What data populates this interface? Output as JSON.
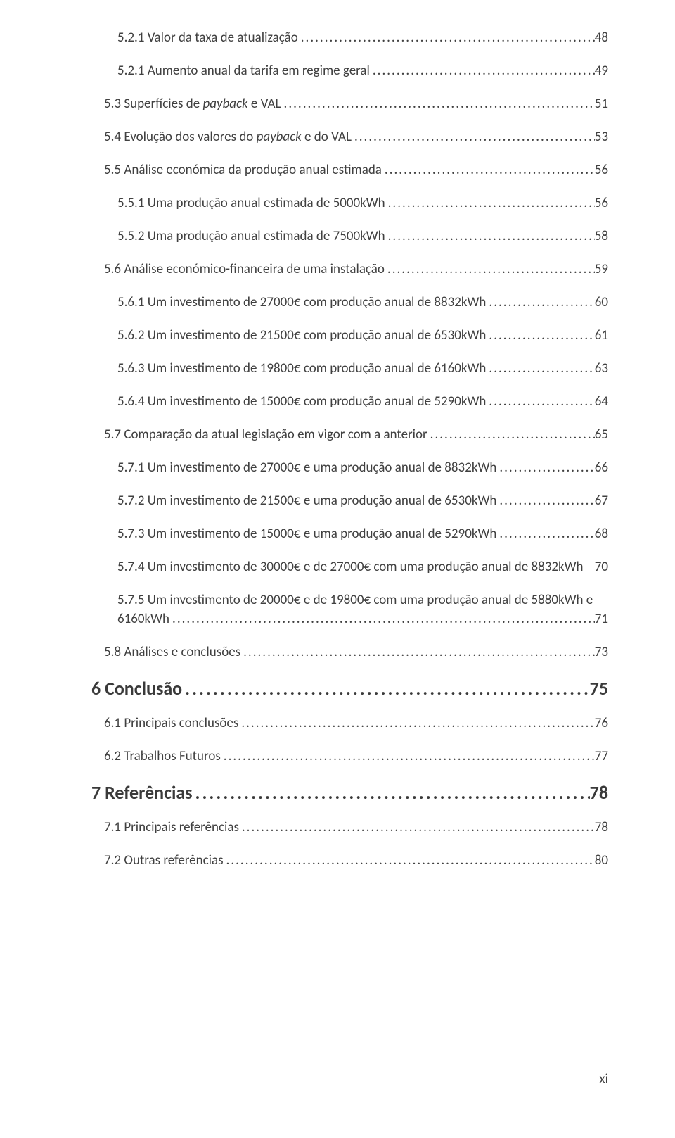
{
  "colors": {
    "text": "#3a3a3a",
    "body": "#404040",
    "background": "#ffffff"
  },
  "typography": {
    "body_font": "Calibri",
    "body_size_pt": 11,
    "heading_size_pt": 15,
    "heading_weight": 700
  },
  "footer": {
    "page_label": "xi"
  },
  "toc": [
    {
      "level": 3,
      "number": "5.2.1",
      "title_parts": [
        "Valor da taxa de atualização"
      ],
      "page": "48"
    },
    {
      "level": 3,
      "number": "5.2.1",
      "title_parts": [
        "Aumento anual da tarifa em regime geral"
      ],
      "page": "49"
    },
    {
      "level": 2,
      "number": "5.3",
      "title_parts": [
        "Superfícies de ",
        {
          "italic": "payback"
        },
        " e VAL"
      ],
      "page": "51"
    },
    {
      "level": 2,
      "number": "5.4",
      "title_parts": [
        "Evolução dos valores do ",
        {
          "italic": "payback"
        },
        " e do VAL"
      ],
      "page": "53"
    },
    {
      "level": 2,
      "number": "5.5",
      "title_parts": [
        "Análise económica da produção anual estimada"
      ],
      "page": "56"
    },
    {
      "level": 3,
      "number": "5.5.1",
      "title_parts": [
        "Uma produção anual estimada de 5000kWh"
      ],
      "page": "56"
    },
    {
      "level": 3,
      "number": "5.5.2",
      "title_parts": [
        "Uma produção anual estimada de 7500kWh"
      ],
      "page": "58"
    },
    {
      "level": 2,
      "number": "5.6",
      "title_parts": [
        "Análise económico-financeira de uma instalação"
      ],
      "page": "59"
    },
    {
      "level": 3,
      "number": "5.6.1",
      "title_parts": [
        "Um investimento de 27000€ com produção anual de 8832kWh"
      ],
      "page": "60"
    },
    {
      "level": 3,
      "number": "5.6.2",
      "title_parts": [
        "Um investimento de 21500€ com produção anual de 6530kWh"
      ],
      "page": "61"
    },
    {
      "level": 3,
      "number": "5.6.3",
      "title_parts": [
        "Um investimento de 19800€ com produção anual de 6160kWh"
      ],
      "page": "63"
    },
    {
      "level": 3,
      "number": "5.6.4",
      "title_parts": [
        "Um investimento de 15000€ com produção anual de 5290kWh"
      ],
      "page": "64"
    },
    {
      "level": 2,
      "number": "5.7",
      "title_parts": [
        "Comparação da atual legislação em vigor com a anterior"
      ],
      "page": "65"
    },
    {
      "level": 3,
      "number": "5.7.1",
      "title_parts": [
        "Um investimento de 27000€ e uma produção anual de 8832kWh"
      ],
      "page": "66"
    },
    {
      "level": 3,
      "number": "5.7.2",
      "title_parts": [
        "Um investimento de 21500€ e uma produção anual de 6530kWh"
      ],
      "page": "67"
    },
    {
      "level": 3,
      "number": "5.7.3",
      "title_parts": [
        "Um investimento de 15000€ e uma produção anual de 5290kWh"
      ],
      "page": "68"
    },
    {
      "level": 3,
      "number": "5.7.4",
      "title_parts": [
        "Um investimento de 30000€ e de 27000€ com uma produção anual de 8832kWh"
      ],
      "page": "70",
      "inline_page": true
    },
    {
      "level": 3,
      "number": "5.7.5",
      "wrap_first": "Um investimento de 20000€ e de 19800€ com uma produção anual de 5880kWh e",
      "wrap_second": "6160kWh",
      "page": "71"
    },
    {
      "level": 2,
      "number": "5.8",
      "title_parts": [
        "Análises e conclusões"
      ],
      "page": "73"
    },
    {
      "level": 1,
      "number": "6",
      "title_parts": [
        "Conclusão"
      ],
      "page": "75"
    },
    {
      "level": 2,
      "number": "6.1",
      "title_parts": [
        "Principais conclusões"
      ],
      "page": "76"
    },
    {
      "level": 2,
      "number": "6.2",
      "title_parts": [
        "Trabalhos Futuros"
      ],
      "page": "77"
    },
    {
      "level": 1,
      "number": "7",
      "title_parts": [
        "Referências"
      ],
      "page": "78"
    },
    {
      "level": 2,
      "number": "7.1",
      "title_parts": [
        "Principais referências"
      ],
      "page": "78"
    },
    {
      "level": 2,
      "number": "7.2",
      "title_parts": [
        "Outras referências"
      ],
      "page": "80"
    }
  ]
}
